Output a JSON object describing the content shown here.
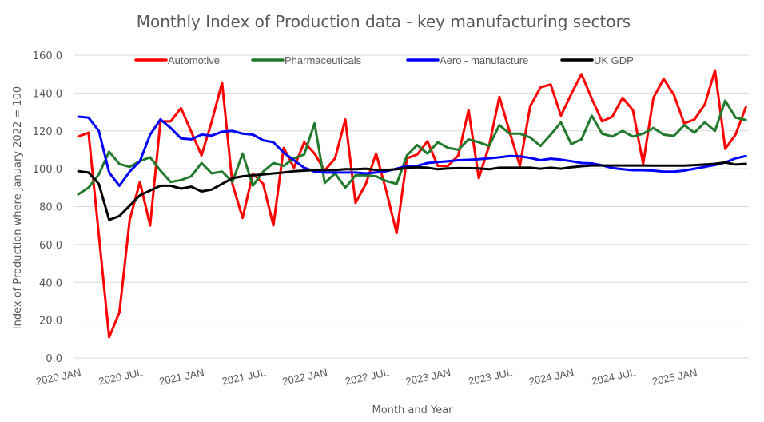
{
  "chart_data": {
    "type": "line",
    "title": "Monthly Index of Production data  - key manufacturing sectors",
    "xlabel": "Month and Year",
    "ylabel": "Index of Production where January 2022 = 100",
    "ylim": [
      0,
      160
    ],
    "yticks": [
      "0.0",
      "20.0",
      "40.0",
      "60.0",
      "80.0",
      "100.0",
      "120.0",
      "140.0",
      "160.0"
    ],
    "ytick_values": [
      0,
      20,
      40,
      60,
      80,
      100,
      120,
      140,
      160
    ],
    "grid": true,
    "legend_position": "top",
    "x": [
      "2020 JAN",
      "2020 FEB",
      "2020 MAR",
      "2020 APR",
      "2020 MAY",
      "2020 JUN",
      "2020 JUL",
      "2020 AUG",
      "2020 SEP",
      "2020 OCT",
      "2020 NOV",
      "2020 DEC",
      "2021 JAN",
      "2021 FEB",
      "2021 MAR",
      "2021 APR",
      "2021 MAY",
      "2021 JUN",
      "2021 JUL",
      "2021 AUG",
      "2021 SEP",
      "2021 OCT",
      "2021 NOV",
      "2021 DEC",
      "2022 JAN",
      "2022 FEB",
      "2022 MAR",
      "2022 APR",
      "2022 MAY",
      "2022 JUN",
      "2022 JUL",
      "2022 AUG",
      "2022 SEP",
      "2022 OCT",
      "2022 NOV",
      "2022 DEC",
      "2023 JAN",
      "2023 FEB",
      "2023 MAR",
      "2023 APR",
      "2023 MAY",
      "2023 JUN",
      "2023 JUL",
      "2023 AUG",
      "2023 SEP",
      "2023 OCT",
      "2023 NOV",
      "2023 DEC",
      "2024 JAN",
      "2024 FEB",
      "2024 MAR",
      "2024 APR",
      "2024 MAY",
      "2024 JUN",
      "2024 JUL",
      "2024 AUG",
      "2024 SEP",
      "2024 OCT",
      "2024 NOV",
      "2024 DEC",
      "2025 JAN",
      "2025 FEB",
      "2025 MAR",
      "2025 APR",
      "2025 MAY",
      "2025 JUN"
    ],
    "xtick_labels": [
      "2020 JAN",
      "2020 JUL",
      "2021 JAN",
      "2021 JUL",
      "2022 JAN",
      "2022 JUL",
      "2023 JAN",
      "2023 JUL",
      "2024 JAN",
      "2024 JUL",
      "2025 JAN"
    ],
    "xtick_indices": [
      0,
      6,
      12,
      18,
      24,
      30,
      36,
      42,
      48,
      54,
      60
    ],
    "series": [
      {
        "name": "Automotive",
        "color": "#ff0000",
        "values": [
          117,
          119,
          65,
          11,
          24,
          73,
          93,
          70,
          125,
          125,
          132,
          119.5,
          107,
          125,
          145.5,
          92,
          74,
          97.5,
          92,
          70,
          111,
          100.5,
          114,
          108,
          99,
          105.5,
          126,
          82,
          92,
          108,
          88,
          66,
          105.5,
          107.5,
          114.5,
          101.5,
          101.5,
          107,
          131,
          95,
          112,
          138,
          119.5,
          101.5,
          133,
          143,
          144.5,
          128,
          139.5,
          150,
          137,
          125,
          127.5,
          137.5,
          131,
          102.5,
          137.5,
          147.5,
          139,
          124,
          126,
          134,
          152,
          110.5,
          118,
          132.5
        ]
      },
      {
        "name": "Pharmaceuticals",
        "color": "#217a2b",
        "values": [
          86.5,
          90,
          97,
          109,
          102.5,
          101,
          104,
          106,
          99,
          93,
          94,
          96,
          103,
          97.5,
          98.5,
          93,
          108,
          91,
          98.5,
          103,
          101.5,
          105.5,
          107.5,
          124,
          92.5,
          97.5,
          90,
          96.5,
          96.5,
          96,
          93.5,
          92,
          107,
          112.5,
          108,
          114,
          111,
          110,
          115.5,
          114,
          112,
          123,
          118.5,
          118.5,
          116.5,
          112,
          118,
          124.5,
          113,
          115.5,
          128,
          118.5,
          117,
          120,
          117,
          118.5,
          121.5,
          118,
          117.3,
          123,
          119,
          124.5,
          120,
          136,
          127,
          125.7
        ]
      },
      {
        "name": "Aero - manufacture",
        "color": "#0000ff",
        "values": [
          127.5,
          127,
          120,
          98,
          91,
          98.5,
          104,
          118,
          126,
          121.5,
          116,
          115.5,
          118,
          117.5,
          119.5,
          120,
          118.5,
          118,
          115,
          114,
          108.5,
          104.5,
          100.5,
          98.5,
          98,
          98,
          98,
          98,
          97.5,
          98,
          98.7,
          100,
          101.5,
          101.5,
          103,
          103.5,
          104,
          104.5,
          104.7,
          105,
          105.5,
          106,
          106.7,
          106.5,
          105.7,
          104.5,
          105.3,
          104.8,
          104,
          103,
          102.8,
          101.8,
          100.4,
          99.7,
          99.2,
          99.2,
          99,
          98.5,
          98.5,
          99,
          100,
          101,
          102,
          103.3,
          105.5,
          106.7
        ]
      },
      {
        "name": "UK GDP",
        "color": "#000000",
        "values": [
          98.7,
          98,
          92,
          73,
          75,
          80.5,
          86,
          88.5,
          91,
          91,
          89.5,
          90.5,
          88,
          89,
          92,
          95,
          96,
          96.5,
          97,
          97.5,
          98,
          98.7,
          99,
          99.3,
          99.3,
          99.3,
          99.7,
          99.7,
          100,
          99.3,
          99.3,
          99.7,
          100.5,
          100.8,
          100.5,
          99.7,
          100.2,
          100.3,
          100.3,
          100.2,
          99.7,
          100.5,
          100.5,
          100.5,
          100.5,
          100,
          100.5,
          100,
          100.8,
          101.3,
          101.7,
          101.7,
          101.7,
          101.7,
          101.7,
          101.7,
          101.6,
          101.6,
          101.6,
          101.6,
          101.9,
          102.2,
          102.6,
          103.3,
          102.2,
          102.6
        ]
      }
    ]
  }
}
